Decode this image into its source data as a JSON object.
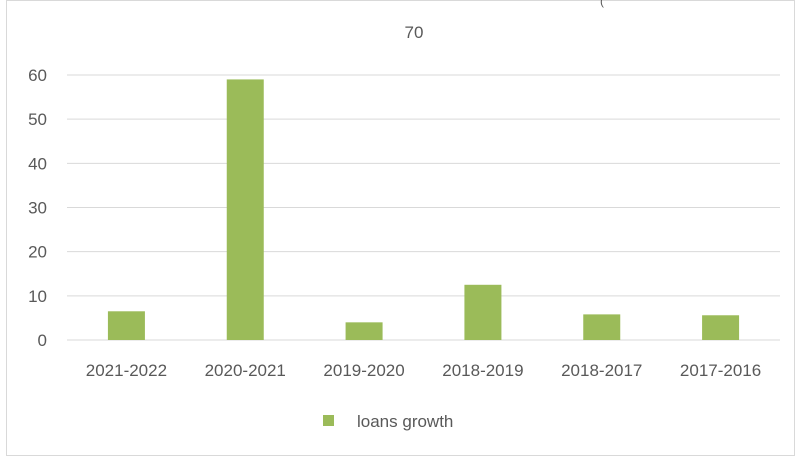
{
  "chart_data": {
    "type": "bar",
    "categories": [
      "2021-2022",
      "2020-2021",
      "2019-2020",
      "2018-2019",
      "2018-2017",
      "2017-2016"
    ],
    "series": [
      {
        "name": "loans growth",
        "values": [
          6.5,
          59,
          4,
          12.5,
          5.8,
          5.6
        ],
        "color": "#9bbb59"
      }
    ],
    "ylim": [
      0,
      60
    ],
    "yticks": [
      0,
      10,
      20,
      30,
      40,
      50,
      60
    ],
    "top_label": "70",
    "corner_mark": "(",
    "grid": true,
    "legend_position": "bottom",
    "grid_color": "#d9d9d9"
  }
}
